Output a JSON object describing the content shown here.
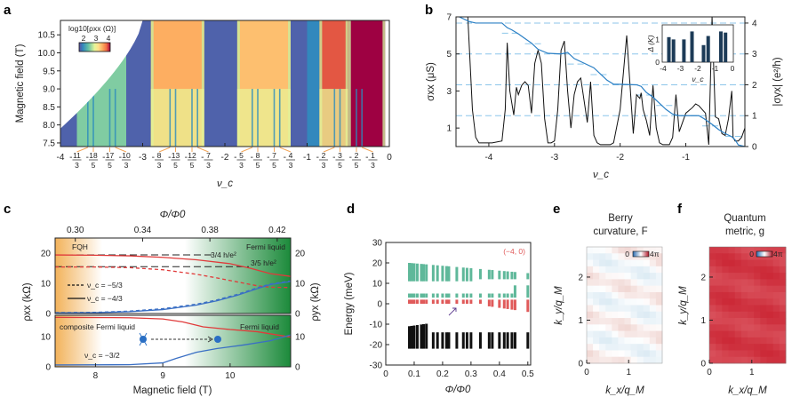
{
  "chart_data": [
    {
      "panel": "a",
      "type": "heatmap",
      "title": "",
      "xlabel": "ν_c",
      "ylabel": "Magnetic field (T)",
      "xlim": [
        -4,
        0
      ],
      "ylim": [
        7.4,
        10.9
      ],
      "yticks": [
        7.5,
        8.0,
        8.5,
        9.0,
        9.5,
        10.0,
        10.5
      ],
      "xticks_integer": [
        "-4",
        "-3",
        "-2",
        "-1",
        "0"
      ],
      "xticks_fraction": [
        {
          "num": "11",
          "den": "3",
          "value": -3.667
        },
        {
          "num": "18",
          "den": "5",
          "value": -3.6
        },
        {
          "num": "17",
          "den": "5",
          "value": -3.4
        },
        {
          "num": "10",
          "den": "3",
          "value": -3.333
        },
        {
          "num": "8",
          "den": "3",
          "value": -2.667
        },
        {
          "num": "13",
          "den": "5",
          "value": -2.6
        },
        {
          "num": "12",
          "den": "5",
          "value": -2.4
        },
        {
          "num": "7",
          "den": "3",
          "value": -2.333
        },
        {
          "num": "5",
          "den": "3",
          "value": -1.667
        },
        {
          "num": "8",
          "den": "5",
          "value": -1.6
        },
        {
          "num": "7",
          "den": "5",
          "value": -1.4
        },
        {
          "num": "4",
          "den": "3",
          "value": -1.333
        },
        {
          "num": "2",
          "den": "3",
          "value": -0.667
        },
        {
          "num": "3",
          "den": "5",
          "value": -0.6
        },
        {
          "num": "2",
          "den": "5",
          "value": -0.4
        },
        {
          "num": "1",
          "den": "3",
          "value": -0.333
        }
      ],
      "colorbar": {
        "label": "log10[ρxx (Ω)]",
        "ticks": [
          "2",
          "3",
          "4"
        ],
        "range": [
          1.5,
          4.2
        ]
      },
      "bands": [
        {
          "from": -4.0,
          "to": -3.8,
          "level": 1.6
        },
        {
          "from": -3.8,
          "to": -3.2,
          "level": 2.4
        },
        {
          "from": -3.2,
          "to": -3.0,
          "level": 1.6
        },
        {
          "from": -3.0,
          "to": -2.9,
          "level": 1.6
        },
        {
          "from": -2.9,
          "to": -2.25,
          "level": 3.4
        },
        {
          "from": -2.25,
          "to": -2.0,
          "level": 1.6
        },
        {
          "from": -2.0,
          "to": -1.85,
          "level": 1.6
        },
        {
          "from": -1.85,
          "to": -1.2,
          "level": 3.3
        },
        {
          "from": -1.2,
          "to": -1.0,
          "level": 1.6
        },
        {
          "from": -1.0,
          "to": -0.85,
          "level": 1.8
        },
        {
          "from": -0.85,
          "to": -0.5,
          "level": 3.8
        },
        {
          "from": -0.5,
          "to": -0.05,
          "level": 4.2
        }
      ],
      "minima_lines": [
        -3.667,
        -3.6,
        -3.4,
        -3.333,
        -2.667,
        -2.6,
        -2.4,
        -2.333,
        -1.667,
        -1.6,
        -1.4,
        -1.333,
        -0.667,
        -0.6,
        -0.4,
        -0.333
      ]
    },
    {
      "panel": "b",
      "type": "line",
      "xlabel": "ν_c",
      "ylabel_left": "σxx (μS)",
      "ylabel_right": "|σyx| (e²/h)",
      "xlim": [
        -4.5,
        -0.1
      ],
      "ylim_left": [
        0,
        7
      ],
      "ylim_right": [
        0,
        4.2
      ],
      "xticks": [
        "-4",
        "-3",
        "-2",
        "-1"
      ],
      "yticks_left": [
        "1",
        "3",
        "5",
        "7"
      ],
      "yticks_right": [
        "0",
        "1",
        "2",
        "3",
        "4"
      ],
      "series": [
        {
          "name": "σxx",
          "axis": "left",
          "color": "#111111",
          "x": [
            -4.45,
            -4.32,
            -4.25,
            -4.2,
            -4.15,
            -4.1,
            -3.95,
            -3.8,
            -3.75,
            -3.72,
            -3.68,
            -3.62,
            -3.58,
            -3.55,
            -3.5,
            -3.45,
            -3.4,
            -3.35,
            -3.3,
            -3.25,
            -3.2,
            -3.15,
            -3.1,
            -3.05,
            -3.0,
            -2.95,
            -2.9,
            -2.85,
            -2.8,
            -2.75,
            -2.7,
            -2.65,
            -2.6,
            -2.55,
            -2.5,
            -2.45,
            -2.4,
            -2.35,
            -2.3,
            -2.25,
            -2.2,
            -2.15,
            -2.1,
            -2.0,
            -1.9,
            -1.8,
            -1.75,
            -1.7,
            -1.68,
            -1.65,
            -1.6,
            -1.55,
            -1.5,
            -1.45,
            -1.4,
            -1.35,
            -1.3,
            -1.25,
            -1.2,
            -1.15,
            -1.1,
            -1.0,
            -0.9,
            -0.85,
            -0.8,
            -0.75,
            -0.7,
            -0.65,
            -0.6,
            -0.55,
            -0.5,
            -0.45,
            -0.4,
            -0.35,
            -0.3,
            -0.28,
            -0.25,
            -0.2,
            -0.15,
            -0.1
          ],
          "y": [
            7.0,
            7.0,
            2.0,
            0.5,
            0.2,
            0.2,
            0.2,
            0.3,
            2.0,
            5.6,
            3.0,
            1.7,
            3.2,
            2.8,
            3.3,
            3.5,
            3.3,
            1.8,
            4.5,
            5.2,
            4.5,
            1.5,
            0.2,
            0.2,
            0.3,
            2.0,
            5.2,
            5.7,
            3.0,
            1.0,
            2.8,
            3.5,
            3.7,
            2.5,
            1.3,
            3.5,
            0.6,
            0.2,
            0.1,
            0.1,
            0.1,
            0.1,
            0.2,
            2.0,
            6.0,
            0.7,
            2.8,
            2.6,
            2.9,
            2.0,
            1.4,
            0.6,
            3.3,
            1.0,
            0.2,
            0.1,
            0.1,
            0.1,
            0.5,
            2.8,
            0.8,
            1.8,
            2.1,
            2.3,
            2.2,
            2.0,
            1.8,
            0.1,
            7.0,
            1.6,
            1.5,
            0.7,
            0.6,
            1.5,
            3.0,
            0.5,
            0.3,
            0.3,
            0.5,
            1.0
          ]
        },
        {
          "name": "|σyx|",
          "axis": "right",
          "color": "#2a7fc4",
          "x": [
            -4.45,
            -4.3,
            -4.2,
            -3.8,
            -3.72,
            -3.65,
            -3.55,
            -3.45,
            -3.35,
            -3.25,
            -3.1,
            -2.9,
            -2.8,
            -2.7,
            -2.55,
            -2.4,
            -2.3,
            -2.2,
            -2.1,
            -1.75,
            -1.68,
            -1.6,
            -1.5,
            -1.4,
            -1.3,
            -1.2,
            -1.1,
            -0.8,
            -0.72,
            -0.6,
            -0.5,
            -0.4,
            -0.3,
            -0.25,
            -0.2,
            -0.1
          ],
          "y": [
            4.2,
            4.05,
            4.0,
            4.0,
            3.85,
            3.78,
            3.65,
            3.5,
            3.35,
            3.15,
            3.02,
            3.0,
            3.05,
            2.85,
            2.7,
            2.55,
            2.35,
            2.15,
            2.02,
            2.0,
            1.95,
            1.75,
            1.6,
            1.4,
            1.2,
            1.05,
            1.0,
            1.0,
            0.9,
            0.72,
            0.55,
            0.42,
            0.32,
            0.22,
            0.05,
            0.0
          ]
        }
      ],
      "dashed_reference_lines_right": [
        1,
        2,
        3,
        4
      ],
      "short_dashed_plateaus": [
        {
          "x": [
            -3.8,
            -3.55
          ],
          "y": 3.67
        },
        {
          "x": [
            -3.45,
            -3.2
          ],
          "y": 3.33
        },
        {
          "x": [
            -2.8,
            -2.55
          ],
          "y": 2.67
        },
        {
          "x": [
            -2.45,
            -2.2
          ],
          "y": 2.33
        },
        {
          "x": [
            -1.75,
            -1.5
          ],
          "y": 1.67
        },
        {
          "x": [
            -1.45,
            -1.2
          ],
          "y": 1.33
        },
        {
          "x": [
            -0.75,
            -0.5
          ],
          "y": 0.67
        },
        {
          "x": [
            -0.4,
            -0.15
          ],
          "y": 0.33
        }
      ],
      "inset": {
        "type": "bar",
        "xlabel": "ν_c",
        "ylabel": "Δ (K)",
        "xlim": [
          -4,
          0
        ],
        "ylim": [
          0,
          1.6
        ],
        "xticks": [
          "-4",
          "-3",
          "-2",
          "-1",
          "0"
        ],
        "yticks": [
          "0",
          "1"
        ],
        "x": [
          -3.667,
          -3.4,
          -2.8,
          -2.333,
          -1.667,
          -1.4,
          -0.667,
          -0.4
        ],
        "values": [
          1.1,
          1.0,
          1.0,
          1.35,
          0.75,
          1.15,
          1.35,
          1.3
        ],
        "color": "#1d3b57"
      }
    },
    {
      "panel": "c",
      "type": "line",
      "xlabel": "Magnetic field (T)",
      "xlabel_top": "Φ/Φ0",
      "ylabel_left": "ρxx (kΩ)",
      "ylabel_right": "ρyx (kΩ)",
      "xlim": [
        7.4,
        10.9
      ],
      "xticks": [
        "8",
        "9",
        "10"
      ],
      "top_xticks": [
        "0.30",
        "0.34",
        "0.38",
        "0.42"
      ],
      "top_xtick_field": [
        7.7,
        8.7,
        9.7,
        10.7
      ],
      "upper": {
        "ylim": [
          0,
          25
        ],
        "yticks": [
          "0",
          "10",
          "20"
        ],
        "annotations": [
          "FQH",
          "Fermi liquid",
          "3/4 h/e²",
          "3/5 h/e²"
        ],
        "legend": [
          {
            "style": "dashed",
            "label": "ν_c = −5/3"
          },
          {
            "style": "solid",
            "label": "ν_c = −4/3"
          }
        ],
        "series": [
          {
            "name": "ρyx ν=-4/3",
            "color": "#e03a3a",
            "style": "solid",
            "x": [
              7.4,
              8.0,
              8.5,
              9.0,
              9.5,
              10.0,
              10.3,
              10.6,
              10.9
            ],
            "y": [
              19.4,
              19.3,
              19.1,
              18.6,
              17.8,
              16.5,
              15.0,
              13.2,
              12.3
            ]
          },
          {
            "name": "ρyx ν=-5/3",
            "color": "#e03a3a",
            "style": "dashed",
            "x": [
              7.4,
              8.0,
              8.5,
              9.0,
              9.5,
              9.8,
              10.1,
              10.4,
              10.6,
              10.9
            ],
            "y": [
              15.4,
              15.4,
              15.2,
              14.5,
              13.0,
              11.8,
              10.5,
              9.2,
              8.7,
              8.6
            ]
          },
          {
            "name": "ρxx ν=-4/3",
            "color": "#3a6fc4",
            "style": "solid",
            "x": [
              7.4,
              8.0,
              8.5,
              9.0,
              9.5,
              9.8,
              10.1,
              10.4,
              10.6,
              10.9
            ],
            "y": [
              0.2,
              0.3,
              0.6,
              1.3,
              2.8,
              4.2,
              6.0,
              8.2,
              9.6,
              10.6
            ]
          },
          {
            "name": "ρxx ν=-5/3",
            "color": "#3a6fc4",
            "style": "dashed",
            "x": [
              7.4,
              8.0,
              8.5,
              9.0,
              9.5,
              9.8,
              10.1,
              10.4,
              10.6,
              10.9
            ],
            "y": [
              0.3,
              0.4,
              0.8,
              1.6,
              3.1,
              4.5,
              6.3,
              8.5,
              9.8,
              10.8
            ]
          }
        ]
      },
      "lower": {
        "ylim": [
          0,
          17
        ],
        "yticks": [
          "0",
          "10"
        ],
        "annotations": [
          "composite Fermi liquid",
          "Fermi liquid",
          "ν_c = −3/2"
        ],
        "series": [
          {
            "name": "ρyx ν=-3/2",
            "color": "#e03a3a",
            "style": "solid",
            "x": [
              7.4,
              8.5,
              9.0,
              9.3,
              9.6,
              10.0,
              10.4,
              10.9
            ],
            "y": [
              16.3,
              16.2,
              15.8,
              14.8,
              13.2,
              12.3,
              11.6,
              9.8
            ]
          },
          {
            "name": "ρxx ν=-3/2",
            "color": "#3a6fc4",
            "style": "solid",
            "x": [
              7.4,
              8.5,
              9.0,
              9.2,
              9.5,
              9.8,
              10.2,
              10.6,
              10.9
            ],
            "y": [
              0.6,
              0.7,
              1.3,
              2.8,
              4.8,
              6.0,
              7.2,
              8.6,
              10.5
            ]
          }
        ]
      }
    },
    {
      "panel": "d",
      "type": "scatter",
      "xlabel": "Φ/Φ0",
      "ylabel": "Energy (meV)",
      "xlim": [
        0,
        0.51
      ],
      "ylim": [
        -30,
        30
      ],
      "xticks": [
        "0",
        "0.1",
        "0.2",
        "0.3",
        "0.4",
        "0.5"
      ],
      "yticks": [
        "-30",
        "-20",
        "-10",
        "0",
        "10",
        "20",
        "30"
      ],
      "annotation": "(−4, 0)",
      "flux_values": [
        0.083,
        0.091,
        0.1,
        0.111,
        0.125,
        0.133,
        0.143,
        0.167,
        0.182,
        0.2,
        0.214,
        0.222,
        0.25,
        0.273,
        0.286,
        0.3,
        0.333,
        0.364,
        0.375,
        0.4,
        0.417,
        0.429,
        0.444,
        0.455,
        0.5
      ],
      "bands": [
        {
          "name": "upper remote",
          "color": "#5fb89a",
          "ymin": 11,
          "ymax": 21
        },
        {
          "name": "upper flat",
          "color": "#5fb89a",
          "ymin": 3,
          "ymax": 5
        },
        {
          "name": "Chern band (−4,0)",
          "color": "#e05a5a",
          "ymin": 0,
          "ymax": 2
        },
        {
          "name": "lower remote",
          "color": "#111111",
          "ymin": -22,
          "ymax": -14
        }
      ]
    },
    {
      "panel": "e",
      "type": "heatmap",
      "title": "Berry curvature, F",
      "xlabel": "k_x/q_M",
      "ylabel": "k_y/q_M",
      "xticks": [
        "0",
        "1"
      ],
      "yticks": [
        "0",
        "1",
        "2"
      ],
      "xlim": [
        0,
        1.8
      ],
      "ylim": [
        0,
        2.7
      ],
      "colorbar": {
        "ticks": [
          "0",
          "4π"
        ],
        "colors": [
          "#2b6cb0",
          "#ffffff",
          "#b2182b"
        ]
      }
    },
    {
      "panel": "f",
      "type": "heatmap",
      "title": "Quantum metric, g",
      "xlabel": "k_x/q_M",
      "ylabel": "k_y/q_M",
      "xticks": [
        "0",
        "1"
      ],
      "yticks": [
        "0",
        "1",
        "2"
      ],
      "xlim": [
        0,
        1.8
      ],
      "ylim": [
        0,
        2.7
      ],
      "colorbar": {
        "ticks": [
          "0",
          "4π"
        ],
        "colors": [
          "#2b6cb0",
          "#ffffff",
          "#b2182b"
        ]
      }
    }
  ],
  "panel_labels": [
    "a",
    "b",
    "c",
    "d",
    "e",
    "f"
  ],
  "panel_titles": {
    "e_line1": "Berry",
    "e_line2": "curvature, F",
    "f_line1": "Quantum",
    "f_line2": "metric, g"
  }
}
